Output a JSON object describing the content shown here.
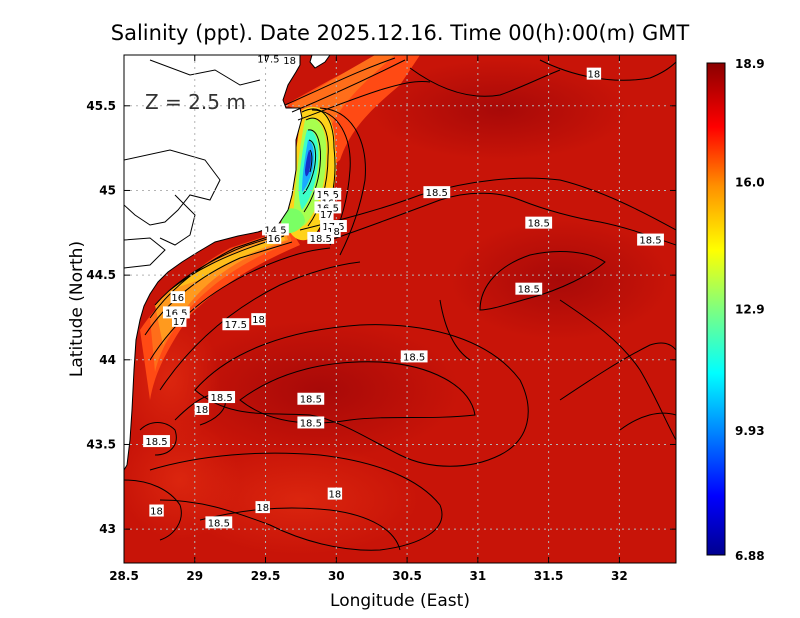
{
  "chart_data": {
    "type": "heatmap",
    "title": "Salinity (ppt). Date 2025.12.16. Time 00(h):00(m) GMT",
    "annotation": "Z = 2.5 m",
    "xlabel": "Longitude (East)",
    "ylabel": "Latitude (North)",
    "xlim": [
      28.5,
      32.4
    ],
    "ylim": [
      42.8,
      45.8
    ],
    "xticks": [
      28.5,
      29,
      29.5,
      30,
      30.5,
      31,
      31.5,
      32
    ],
    "xtick_labels": [
      "28.5",
      "29",
      "29.5",
      "30",
      "30.5",
      "31",
      "31.5",
      "32"
    ],
    "yticks": [
      43,
      43.5,
      44,
      44.5,
      45,
      45.5
    ],
    "ytick_labels": [
      "43",
      "43.5",
      "44",
      "44.5",
      "45",
      "45.5"
    ],
    "grid": true,
    "colorbar": {
      "min": 6.88,
      "max": 18.9,
      "ticks": [
        18.9,
        16.0,
        12.9,
        9.93,
        6.88
      ],
      "tick_labels": [
        "18.9",
        "16.0",
        "12.9",
        "9.93",
        "6.88"
      ],
      "colormap": "jet"
    },
    "contour_labels": [
      {
        "lon": 29.52,
        "lat": 45.78,
        "label": "17.5"
      },
      {
        "lon": 29.67,
        "lat": 45.77,
        "label": "18"
      },
      {
        "lon": 31.82,
        "lat": 45.69,
        "label": "18"
      },
      {
        "lon": 30.71,
        "lat": 44.99,
        "label": "18.5"
      },
      {
        "lon": 31.43,
        "lat": 44.81,
        "label": "18.5"
      },
      {
        "lon": 32.22,
        "lat": 44.71,
        "label": "18.5"
      },
      {
        "lon": 29.94,
        "lat": 44.98,
        "label": "15.5"
      },
      {
        "lon": 29.94,
        "lat": 44.93,
        "label": "16"
      },
      {
        "lon": 29.94,
        "lat": 44.9,
        "label": "16.5"
      },
      {
        "lon": 29.93,
        "lat": 44.86,
        "label": "17"
      },
      {
        "lon": 29.98,
        "lat": 44.79,
        "label": "17.5"
      },
      {
        "lon": 29.98,
        "lat": 44.76,
        "label": "18"
      },
      {
        "lon": 29.89,
        "lat": 44.72,
        "label": "18.5"
      },
      {
        "lon": 29.57,
        "lat": 44.77,
        "label": "14.5"
      },
      {
        "lon": 29.56,
        "lat": 44.72,
        "label": "16"
      },
      {
        "lon": 31.36,
        "lat": 44.42,
        "label": "18.5"
      },
      {
        "lon": 28.88,
        "lat": 44.37,
        "label": "16"
      },
      {
        "lon": 28.87,
        "lat": 44.28,
        "label": "16.5"
      },
      {
        "lon": 28.89,
        "lat": 44.23,
        "label": "17"
      },
      {
        "lon": 29.29,
        "lat": 44.21,
        "label": "17.5"
      },
      {
        "lon": 29.45,
        "lat": 44.24,
        "label": "18"
      },
      {
        "lon": 30.55,
        "lat": 44.02,
        "label": "18.5"
      },
      {
        "lon": 29.19,
        "lat": 43.78,
        "label": "18.5"
      },
      {
        "lon": 29.05,
        "lat": 43.71,
        "label": "18"
      },
      {
        "lon": 29.82,
        "lat": 43.77,
        "label": "18.5"
      },
      {
        "lon": 29.82,
        "lat": 43.63,
        "label": "18.5"
      },
      {
        "lon": 28.73,
        "lat": 43.52,
        "label": "18.5"
      },
      {
        "lon": 29.99,
        "lat": 43.21,
        "label": "18"
      },
      {
        "lon": 29.48,
        "lat": 43.13,
        "label": "18"
      },
      {
        "lon": 28.73,
        "lat": 43.11,
        "label": "18"
      },
      {
        "lon": 29.17,
        "lat": 43.04,
        "label": "18.5"
      }
    ],
    "colors": {
      "land": "#ffffff",
      "sea_dominant": "#c81408",
      "contour": "#000000",
      "grid": "#b4b4b4"
    }
  }
}
